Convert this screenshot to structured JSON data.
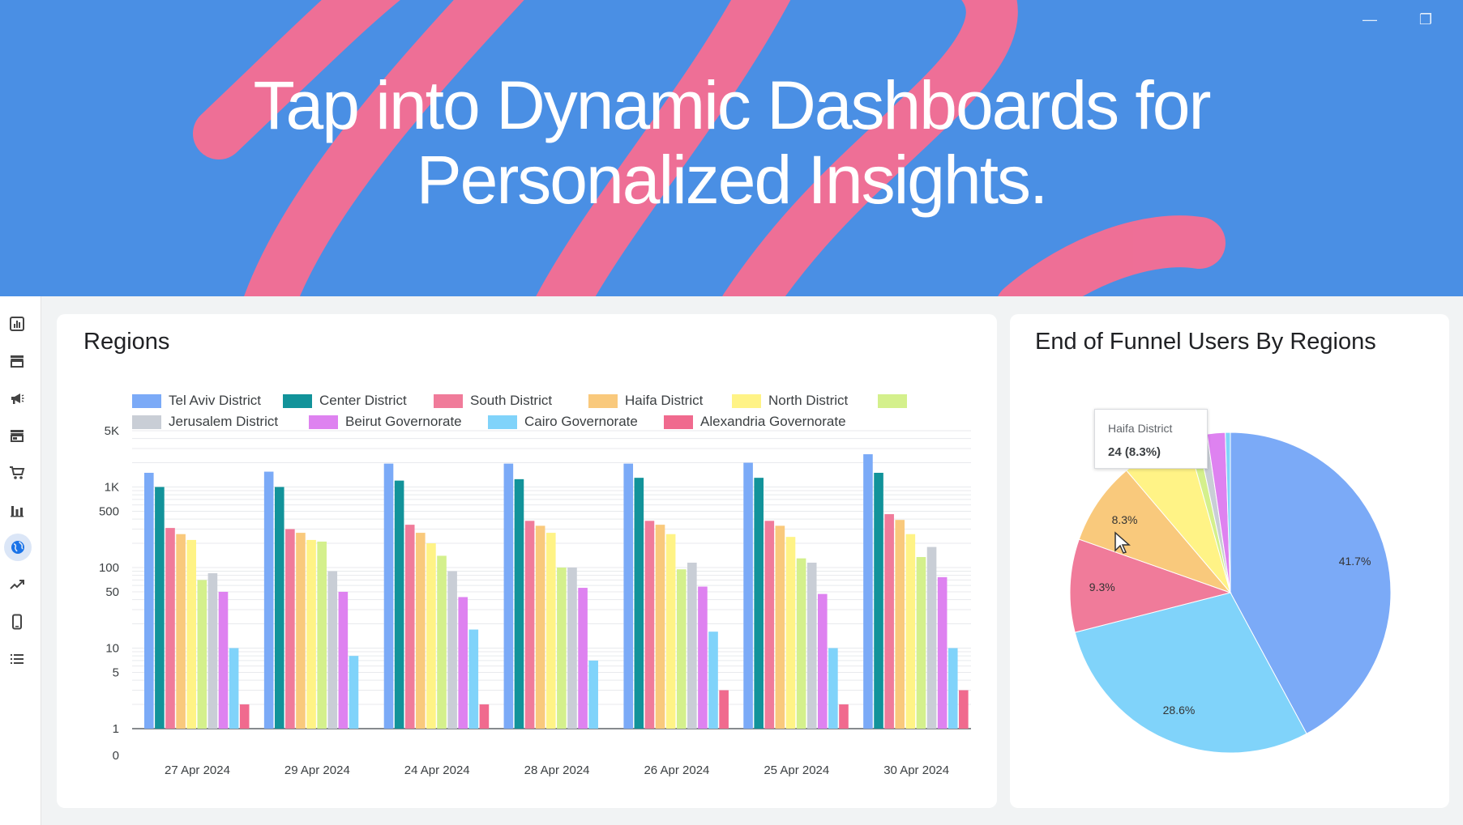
{
  "hero": {
    "line1": "Tap into Dynamic Dashboards for",
    "line2": "Personalized Insights."
  },
  "window": {
    "minimize": "—",
    "restore": "❐"
  },
  "sidebar": {
    "items": [
      {
        "icon": "report-icon"
      },
      {
        "icon": "store-icon"
      },
      {
        "icon": "megaphone-icon"
      },
      {
        "icon": "storefront-icon"
      },
      {
        "icon": "cart-icon"
      },
      {
        "icon": "bar-chart-icon"
      },
      {
        "icon": "globe-icon",
        "active": true
      },
      {
        "icon": "trending-up-icon"
      },
      {
        "icon": "phone-icon"
      },
      {
        "icon": "list-icon"
      }
    ]
  },
  "regions": {
    "title": "Regions"
  },
  "funnel": {
    "title": "End of Funnel Users By Regions",
    "tooltip": {
      "label": "Haifa District",
      "value": "24 (8.3%)"
    }
  },
  "chart_data": [
    {
      "type": "bar",
      "title": "Regions",
      "yscale": "log",
      "yticks": [
        "5K",
        "1K",
        "500",
        "100",
        "50",
        "10",
        "5",
        "1",
        "0"
      ],
      "ytick_values": [
        5000,
        1000,
        500,
        100,
        50,
        10,
        5,
        1,
        0
      ],
      "legend_placement": "top",
      "categories": [
        "27 Apr 2024",
        "29 Apr 2024",
        "24 Apr 2024",
        "28 Apr 2024",
        "26 Apr 2024",
        "25 Apr 2024",
        "30 Apr 2024"
      ],
      "series": [
        {
          "name": "Tel Aviv District",
          "color": "#7baaf7",
          "values": [
            1500,
            1550,
            1950,
            1950,
            1950,
            2000,
            2550
          ]
        },
        {
          "name": "Center District",
          "color": "#12939a",
          "values": [
            1000,
            1000,
            1200,
            1250,
            1300,
            1300,
            1500
          ]
        },
        {
          "name": "South District",
          "color": "#f07b9a",
          "values": [
            310,
            300,
            340,
            380,
            380,
            380,
            460
          ]
        },
        {
          "name": "Haifa District",
          "color": "#f9c97c",
          "values": [
            260,
            270,
            270,
            330,
            340,
            330,
            390
          ]
        },
        {
          "name": "North District",
          "color": "#fff386",
          "values": [
            220,
            220,
            200,
            270,
            260,
            240,
            260
          ]
        },
        {
          "name": "",
          "color": "#d4f08c",
          "values": [
            70,
            210,
            140,
            100,
            95,
            130,
            135
          ]
        },
        {
          "name": "Jerusalem District",
          "color": "#c9ced6",
          "values": [
            85,
            90,
            90,
            100,
            115,
            115,
            180
          ]
        },
        {
          "name": "Beirut Governorate",
          "color": "#de82f0",
          "values": [
            50,
            50,
            43,
            56,
            58,
            47,
            76
          ]
        },
        {
          "name": "Cairo Governorate",
          "color": "#80d3fa",
          "values": [
            10,
            8,
            17,
            7,
            16,
            10,
            10
          ]
        },
        {
          "name": "Alexandria Governorate",
          "color": "#f06a8e",
          "values": [
            2,
            null,
            2,
            null,
            3,
            2,
            3
          ]
        }
      ]
    },
    {
      "type": "pie",
      "title": "End of Funnel Users By Regions",
      "slices": [
        {
          "label": "Tel Aviv District",
          "value": 41.7,
          "color": "#7baaf7",
          "text": "41.7%"
        },
        {
          "label": "Cairo Governorate",
          "value": 28.6,
          "color": "#80d3fa",
          "text": "28.6%"
        },
        {
          "label": "South District",
          "value": 9.3,
          "color": "#f07b9a",
          "text": "9.3%"
        },
        {
          "label": "Haifa District",
          "value": 8.3,
          "color": "#f9c97c",
          "text": "8.3%"
        },
        {
          "label": "North District",
          "value": 6.8,
          "color": "#fff386",
          "text": ""
        },
        {
          "label": "",
          "value": 1.0,
          "color": "#d4f08c",
          "text": ""
        },
        {
          "label": "Jerusalem District",
          "value": 1.0,
          "color": "#c9ced6",
          "text": ""
        },
        {
          "label": "Beirut Governorate",
          "value": 1.8,
          "color": "#de82f0",
          "text": ""
        },
        {
          "label": "Center District",
          "value": 0.5,
          "color": "#80d3fa",
          "text": ""
        }
      ]
    }
  ]
}
